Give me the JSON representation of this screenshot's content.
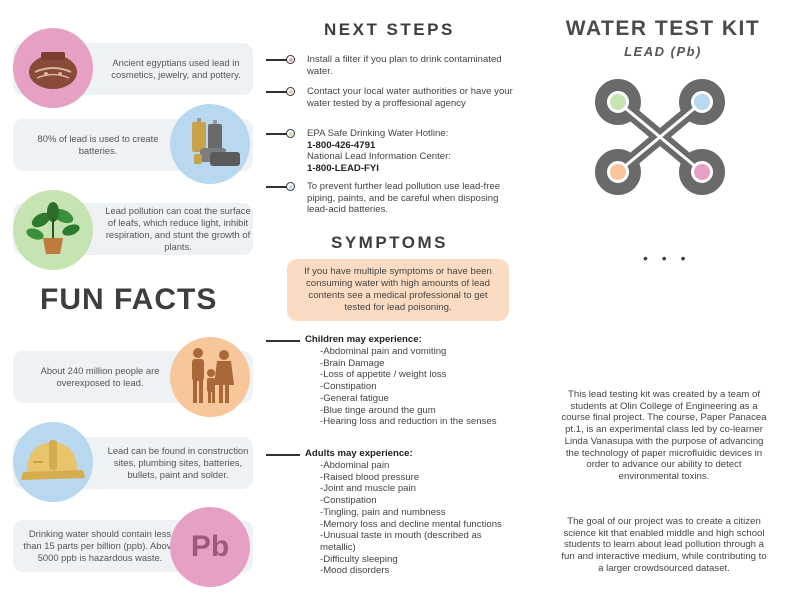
{
  "fun_facts": {
    "title": "FUN FACTS",
    "facts": [
      {
        "text": "Ancient egyptians used lead in cosmetics, jewelry, and pottery.",
        "icon": "pottery-icon",
        "circle_color": "#e6a0c4"
      },
      {
        "text": "80% of lead is used to create batteries.",
        "icon": "battery-icon",
        "circle_color": "#b8d8f0"
      },
      {
        "text": "Lead pollution can coat the surface of leafs, which reduce light, inhibit respiration, and stunt the growth of plants.",
        "icon": "plant-icon",
        "circle_color": "#c6e3b2"
      },
      {
        "text": "About 240 million people are overexposed to lead.",
        "icon": "family-icon",
        "circle_color": "#f7c69b"
      },
      {
        "text": "Lead can be found in construction sites, plumbing sites, batteries, bullets, paint and solder.",
        "icon": "hard-hat-icon",
        "circle_color": "#b8d8f0"
      },
      {
        "text": "Drinking water should contain less than 15 parts per billion (ppb). Above 5000 ppb is hazardous waste.",
        "icon": "pb-element-icon",
        "circle_color": "#e6a0c4",
        "badge": "Pb"
      }
    ]
  },
  "next_steps": {
    "title": "NEXT STEPS",
    "items": [
      {
        "text": "Install a filter if you plan to drink contaminated water.",
        "dot_color": "#e6a0c4"
      },
      {
        "text": "Contact your local water authorities or have your water tested by a proffesional agency",
        "dot_color": "#f7c69b"
      },
      {
        "line1": "EPA Safe Drinking Water Hotline:",
        "phone1": "1-800-426-4791",
        "line2": "National Lead Information Center:",
        "phone2": "1-800-LEAD-FYI",
        "dot_color": "#c6e3b2"
      },
      {
        "text": "To prevent further lead pollution use lead-free piping, paints, and be careful when disposing lead-acid batteries.",
        "dot_color": "#b8d8f0"
      }
    ]
  },
  "symptoms": {
    "title": "SYMPTOMS",
    "warning": "If you have multiple symptoms or have been consuming water with high amounts of lead contents see a medical professional to get tested for lead poisoning.",
    "children_head": "Children may experience:",
    "children": [
      "-Abdominal pain and vomiting",
      "-Brain Damage",
      "-Loss of appetite / weight loss",
      "-Constipation",
      "-General fatigue",
      "-Blue tinge around the gum",
      "-Hearing loss and reduction in the senses"
    ],
    "adults_head": "Adults may experience:",
    "adults": [
      "-Abdominal pain",
      "-Raised blood pressure",
      "-Joint and muscle pain",
      "-Constipation",
      "-Tingling, pain and numbness",
      "-Memory loss and decline mental functions",
      "-Unusual taste in mouth (described as metallic)",
      "-Difficulty sleeping",
      "-Mood disorders"
    ]
  },
  "kit": {
    "title": "WATER TEST KIT",
    "subtitle": "LEAD (Pb)",
    "ellipsis": "• • •",
    "dot_colors": [
      "#c6e3b2",
      "#b8d8f0",
      "#f7c69b",
      "#e6a0c4"
    ],
    "about1": "This lead testing kit was created by a team of students at Olin College of Engineering as a course final project. The course, Paper Panacea pt.1, is an experimental class led by co-learner Linda Vanasupa with the purpose of advancing the technology of paper microfluidic devices in order to advance our ability to detect environmental toxins.",
    "about2": "The goal of our project was to create a citizen science kit that enabled middle and high school students to learn about lead pollution through a fun and interactive medium, while contributing to a larger crowdsourced dataset."
  }
}
